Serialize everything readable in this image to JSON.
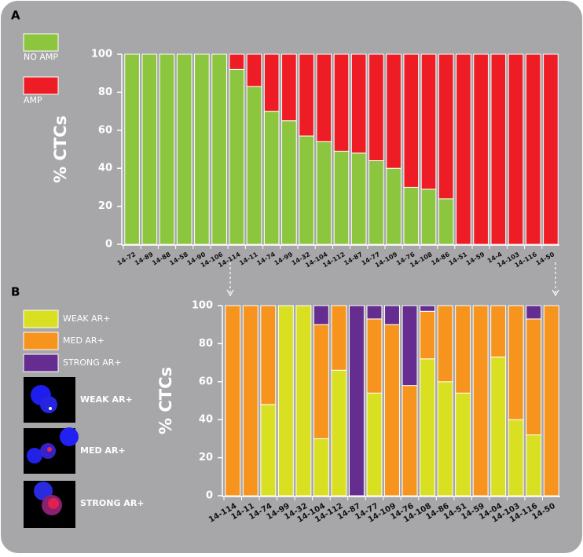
{
  "chart_data": [
    {
      "type": "stacked_bar",
      "panel_label": "A",
      "ylabel": "% CTCs",
      "categories": [
        "14-72",
        "14-89",
        "14-88",
        "14-58",
        "14-90",
        "14-106",
        "14-114",
        "14-11",
        "14-74",
        "14-99",
        "14-32",
        "14-104",
        "14-112",
        "14-87",
        "14-77",
        "14-109",
        "14-76",
        "14-108",
        "14-86",
        "14-51",
        "14-59",
        "14-4",
        "14-103",
        "14-116",
        "14-50"
      ],
      "series": [
        {
          "name": "NO AMP",
          "color": "#8cc63f",
          "values": [
            100,
            100,
            100,
            100,
            100,
            100,
            92,
            83,
            70,
            65,
            57,
            54,
            49,
            48,
            44,
            40,
            30,
            29,
            24,
            0,
            0,
            0,
            0,
            0,
            0
          ]
        },
        {
          "name": "AMP",
          "color": "#ee1c25",
          "values": [
            0,
            0,
            0,
            0,
            0,
            0,
            8,
            17,
            30,
            35,
            43,
            46,
            51,
            52,
            56,
            60,
            70,
            71,
            76,
            100,
            100,
            100,
            100,
            100,
            100
          ]
        }
      ],
      "ylim": [
        0,
        100
      ],
      "yticks": [
        0,
        20,
        40,
        60,
        80,
        100
      ]
    },
    {
      "type": "stacked_bar",
      "panel_label": "B",
      "ylabel": "% CTCs",
      "categories": [
        "14-114",
        "14-11",
        "14-74",
        "14-99",
        "14-32",
        "14-104",
        "14-112",
        "14-87",
        "14-77",
        "14-109",
        "14-76",
        "14-108",
        "14-86",
        "14-51",
        "14-59",
        "14-04",
        "14-103",
        "14-116",
        "14-50"
      ],
      "series": [
        {
          "name": "WEAK AR+",
          "color": "#d9e021",
          "values": [
            0,
            0,
            48,
            100,
            100,
            30,
            66,
            0,
            54,
            0,
            0,
            72,
            60,
            54,
            0,
            73,
            40,
            32,
            0
          ]
        },
        {
          "name": "MED AR+",
          "color": "#f7941d",
          "values": [
            100,
            100,
            52,
            0,
            0,
            60,
            34,
            0,
            39,
            90,
            58,
            25,
            40,
            46,
            100,
            27,
            60,
            61,
            100
          ]
        },
        {
          "name": "STRONG AR+",
          "color": "#662d91",
          "values": [
            0,
            0,
            0,
            0,
            0,
            10,
            0,
            100,
            7,
            10,
            42,
            3,
            0,
            0,
            0,
            0,
            0,
            7,
            0
          ]
        }
      ],
      "ylim": [
        0,
        100
      ],
      "yticks": [
        0,
        20,
        40,
        60,
        80,
        100
      ],
      "micrograph_labels": [
        "WEAK AR+",
        "MED AR+",
        "STRONG AR+"
      ]
    }
  ]
}
